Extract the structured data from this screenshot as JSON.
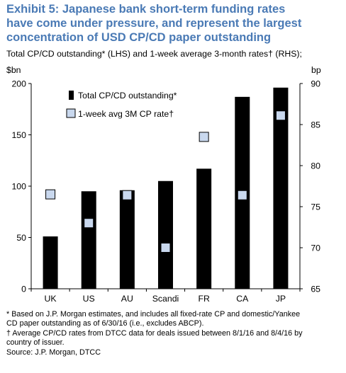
{
  "title_lines": [
    "Exhibit 5: Japanese bank short-term funding rates",
    "have come under pressure, and represent the largest",
    "concentration of USD CP/CD paper outstanding"
  ],
  "subtitle": "Total CP/CD outstanding* (LHS) and 1-week average 3-month rates† (RHS);",
  "colors": {
    "title": "#4a7ab5",
    "bar": "#000000",
    "marker_fill": "#c9d8ee",
    "marker_stroke": "#000000"
  },
  "chart_data": {
    "type": "bar",
    "categories": [
      "UK",
      "US",
      "AU",
      "Scandi",
      "FR",
      "CA",
      "JP"
    ],
    "series": [
      {
        "name": "Total CP/CD outstanding*",
        "type": "bar",
        "axis": "left",
        "values": [
          51,
          95,
          96,
          105,
          117,
          187,
          196
        ]
      },
      {
        "name": "1-week avg 3M CP rate†",
        "type": "scatter",
        "axis": "right",
        "values": [
          76.5,
          73,
          76.4,
          70,
          83.5,
          76.4,
          86.1
        ]
      }
    ],
    "ylabel_left": "$bn",
    "ylabel_right": "bp",
    "ylim_left": [
      0,
      200
    ],
    "ylim_right": [
      65,
      90
    ],
    "yticks_left": [
      "0",
      "50",
      "100",
      "150",
      "200"
    ],
    "yticks_right": [
      "65",
      "70",
      "75",
      "80",
      "85",
      "90"
    ],
    "legend_position": "top-left",
    "grid": false
  },
  "footnotes": [
    "* Based on J.P. Morgan estimates, and includes all fixed-rate CP and domestic/Yankee",
    "CD paper outstanding as of 6/30/16 (i.e., excludes ABCP).",
    "† Average CP/CD rates from DTCC data for deals issued between 8/1/16 and 8/4/16 by",
    "country of issuer.",
    "Source: J.P. Morgan, DTCC"
  ]
}
